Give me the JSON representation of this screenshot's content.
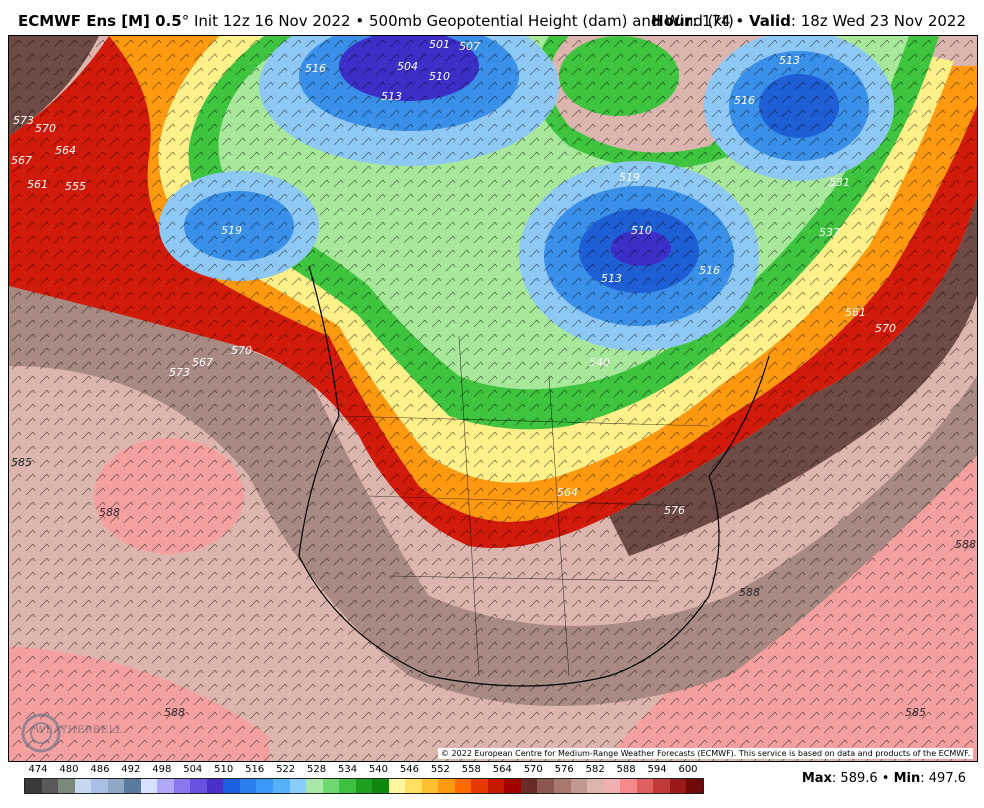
{
  "title": {
    "model": "ECMWF Ens [M] 0.5",
    "degree": "°",
    "init": "Init 12z 16 Nov 2022",
    "separator": "•",
    "product": "500mb Geopotential Height (dam) and Wind (kt)",
    "hour_label": "Hour",
    "hour_value": ": 174",
    "valid_label": "Valid",
    "valid_value": ": 18z Wed 23 Nov 2022"
  },
  "map": {
    "contour_labels": {
      "l504": "504",
      "l501": "501",
      "l507": "507",
      "l510a": "510",
      "l513a": "513",
      "l516a": "516",
      "l519a": "519",
      "l513b": "513",
      "l516b": "516",
      "l510b": "510",
      "l513c": "513",
      "l516c": "516",
      "l519b": "519",
      "l573a": "573",
      "l570a": "570",
      "l567a": "567",
      "l564a": "564",
      "l561a": "561",
      "l555a": "555",
      "l567b": "567",
      "l570b": "570",
      "l573b": "573",
      "l540a": "540",
      "l564b": "564",
      "l561b": "561",
      "l570c": "570",
      "l585a": "585",
      "l588a": "588",
      "l588b": "588",
      "l588c": "588",
      "l588d": "588",
      "l576a": "576",
      "l585b": "585",
      "l531a": "531",
      "l537a": "537"
    },
    "copyright": "© 2022 European Centre for Medium-Range Weather Forecasts (ECMWF). This service is based on data and products of the ECMWF.",
    "watermark": "WEATHERBELL"
  },
  "colors": {
    "low_blue_dark": "#3b2fc8",
    "low_blue": "#1f5fd6",
    "mid_blue": "#3a8fe8",
    "light_blue": "#8ec8f5",
    "light_green": "#a8e89a",
    "green": "#3ec43e",
    "dark_green": "#1a9e1a",
    "yellow": "#fff08a",
    "orange": "#ffb020",
    "red_orange": "#f25a10",
    "red": "#d21a0a",
    "dark_red": "#9e0a0a",
    "brown": "#6e4a44",
    "tan": "#b9948c",
    "pink_tan": "#dcb6ae",
    "pink": "#f4a0a0"
  },
  "scale": {
    "labels": [
      "474",
      "480",
      "486",
      "492",
      "498",
      "504",
      "510",
      "516",
      "522",
      "528",
      "534",
      "540",
      "546",
      "552",
      "558",
      "564",
      "570",
      "576",
      "582",
      "588",
      "594",
      "600"
    ],
    "colors": [
      "#3a3a3a",
      "#5a5a5a",
      "#7a8a7a",
      "#c8d8f0",
      "#a8c0e8",
      "#90a8c8",
      "#5a7aa0",
      "#d8e0ff",
      "#b0a8f8",
      "#8a78f0",
      "#6a50e0",
      "#4a30c8",
      "#1a60e0",
      "#2a80f0",
      "#3a98f8",
      "#58b0f8",
      "#88cef8",
      "#a8e8a8",
      "#70d870",
      "#40c040",
      "#20a020",
      "#108810",
      "#fff8a0",
      "#ffe060",
      "#ffc030",
      "#ff9a10",
      "#ff6a00",
      "#e83a00",
      "#c81a00",
      "#a00000",
      "#6a2a28",
      "#8a5850",
      "#a87870",
      "#c09890",
      "#dcb4ac",
      "#f0b0b0",
      "#f48a8a",
      "#e06060",
      "#c03a3a",
      "#9a1a1a",
      "#700a0a"
    ]
  },
  "maxmin": {
    "max_label": "Max",
    "max_value": ": 589.6",
    "sep": "•",
    "min_label": "Min",
    "min_value": ": 497.6"
  }
}
